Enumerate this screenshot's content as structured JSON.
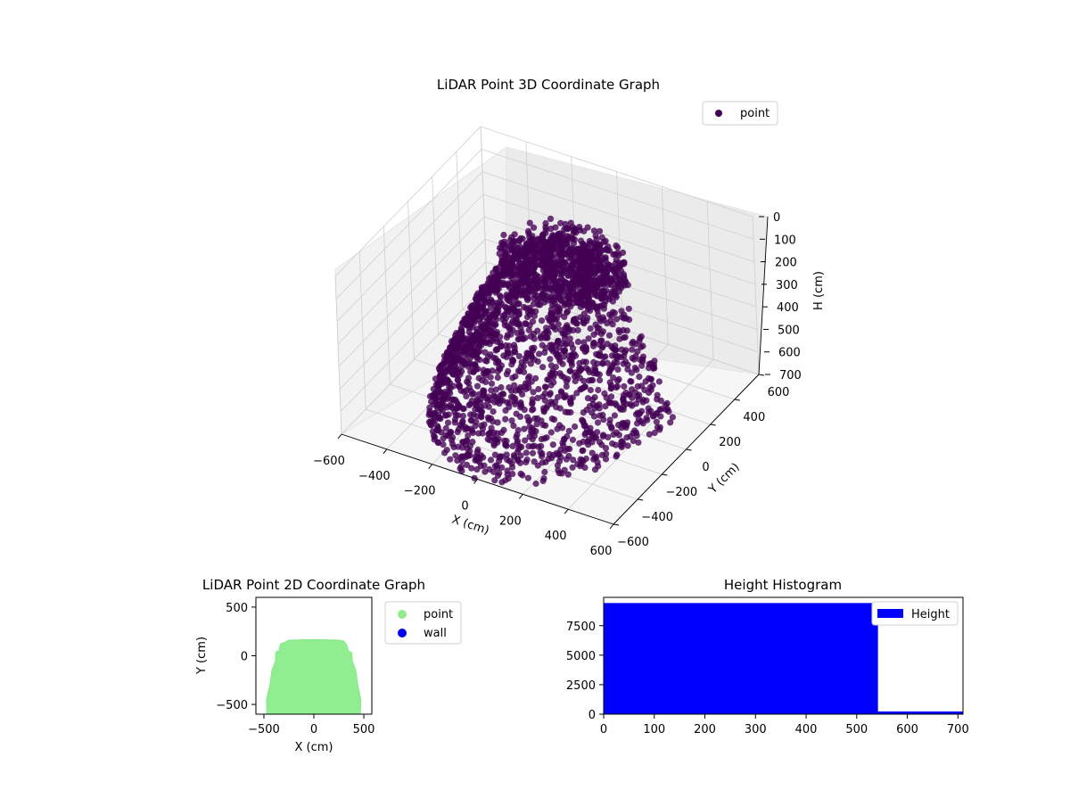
{
  "chart_data": [
    {
      "id": "lidar-3d",
      "type": "scatter",
      "title": "LiDAR Point 3D Coordinate Graph",
      "xlabel": "X (cm)",
      "ylabel": "Y (cm)",
      "zlabel": "H (cm)",
      "xticks": [
        "−600",
        "−400",
        "−200",
        "0",
        "200",
        "400",
        "600"
      ],
      "yticks": [
        "−600",
        "−400",
        "−200",
        "0",
        "200",
        "400",
        "600"
      ],
      "zticks": [
        "0",
        "100",
        "200",
        "300",
        "400",
        "500",
        "600",
        "700"
      ],
      "xlim": [
        -600,
        600
      ],
      "ylim": [
        -600,
        600
      ],
      "zlim": [
        0,
        700
      ],
      "z_axis_inverted": true,
      "grid": true,
      "legend": {
        "entries": [
          "point"
        ],
        "placement": "top-right"
      },
      "series": [
        {
          "name": "point",
          "color": "#440154",
          "description_points": "dense dome-shaped cloud of LiDAR returns"
        }
      ]
    },
    {
      "id": "lidar-2d",
      "type": "scatter",
      "title": "LiDAR Point 2D Coordinate Graph",
      "xlabel": "X (cm)",
      "ylabel": "Y (cm)",
      "xticks": [
        "−500",
        "0",
        "500"
      ],
      "yticks": [
        "−500",
        "0",
        "500"
      ],
      "xlim": [
        -580,
        580
      ],
      "ylim": [
        -600,
        600
      ],
      "legend": {
        "entries": [
          "point",
          "wall"
        ],
        "placement": "outside-right"
      },
      "series": [
        {
          "name": "point",
          "color": "#90ee90",
          "outline_xy": [
            [
              -470,
              -600
            ],
            [
              -475,
              -450
            ],
            [
              -440,
              -300
            ],
            [
              -420,
              -150
            ],
            [
              -385,
              -50
            ],
            [
              -380,
              40
            ],
            [
              -350,
              50
            ],
            [
              -335,
              120
            ],
            [
              -290,
              140
            ],
            [
              -250,
              160
            ],
            [
              -100,
              165
            ],
            [
              100,
              165
            ],
            [
              250,
              160
            ],
            [
              300,
              150
            ],
            [
              330,
              110
            ],
            [
              345,
              50
            ],
            [
              380,
              30
            ],
            [
              385,
              -50
            ],
            [
              420,
              -150
            ],
            [
              440,
              -300
            ],
            [
              470,
              -450
            ],
            [
              465,
              -600
            ]
          ]
        },
        {
          "name": "wall",
          "color": "#0000ee"
        }
      ]
    },
    {
      "id": "height-hist",
      "type": "bar",
      "title": "Height Histogram",
      "xticks": [
        "0",
        "100",
        "200",
        "300",
        "400",
        "500",
        "600",
        "700"
      ],
      "yticks": [
        "0",
        "2500",
        "5000",
        "7500"
      ],
      "xlim": [
        0,
        710
      ],
      "ylim": [
        0,
        9900
      ],
      "bins": [
        {
          "x0": 0,
          "x1": 542,
          "count": 9420
        },
        {
          "x0": 542,
          "x1": 710,
          "count": 230
        }
      ],
      "legend": {
        "entries": [
          "Height"
        ],
        "placement": "top-right"
      },
      "series": [
        {
          "name": "Height",
          "color": "#0000ff"
        }
      ]
    }
  ]
}
